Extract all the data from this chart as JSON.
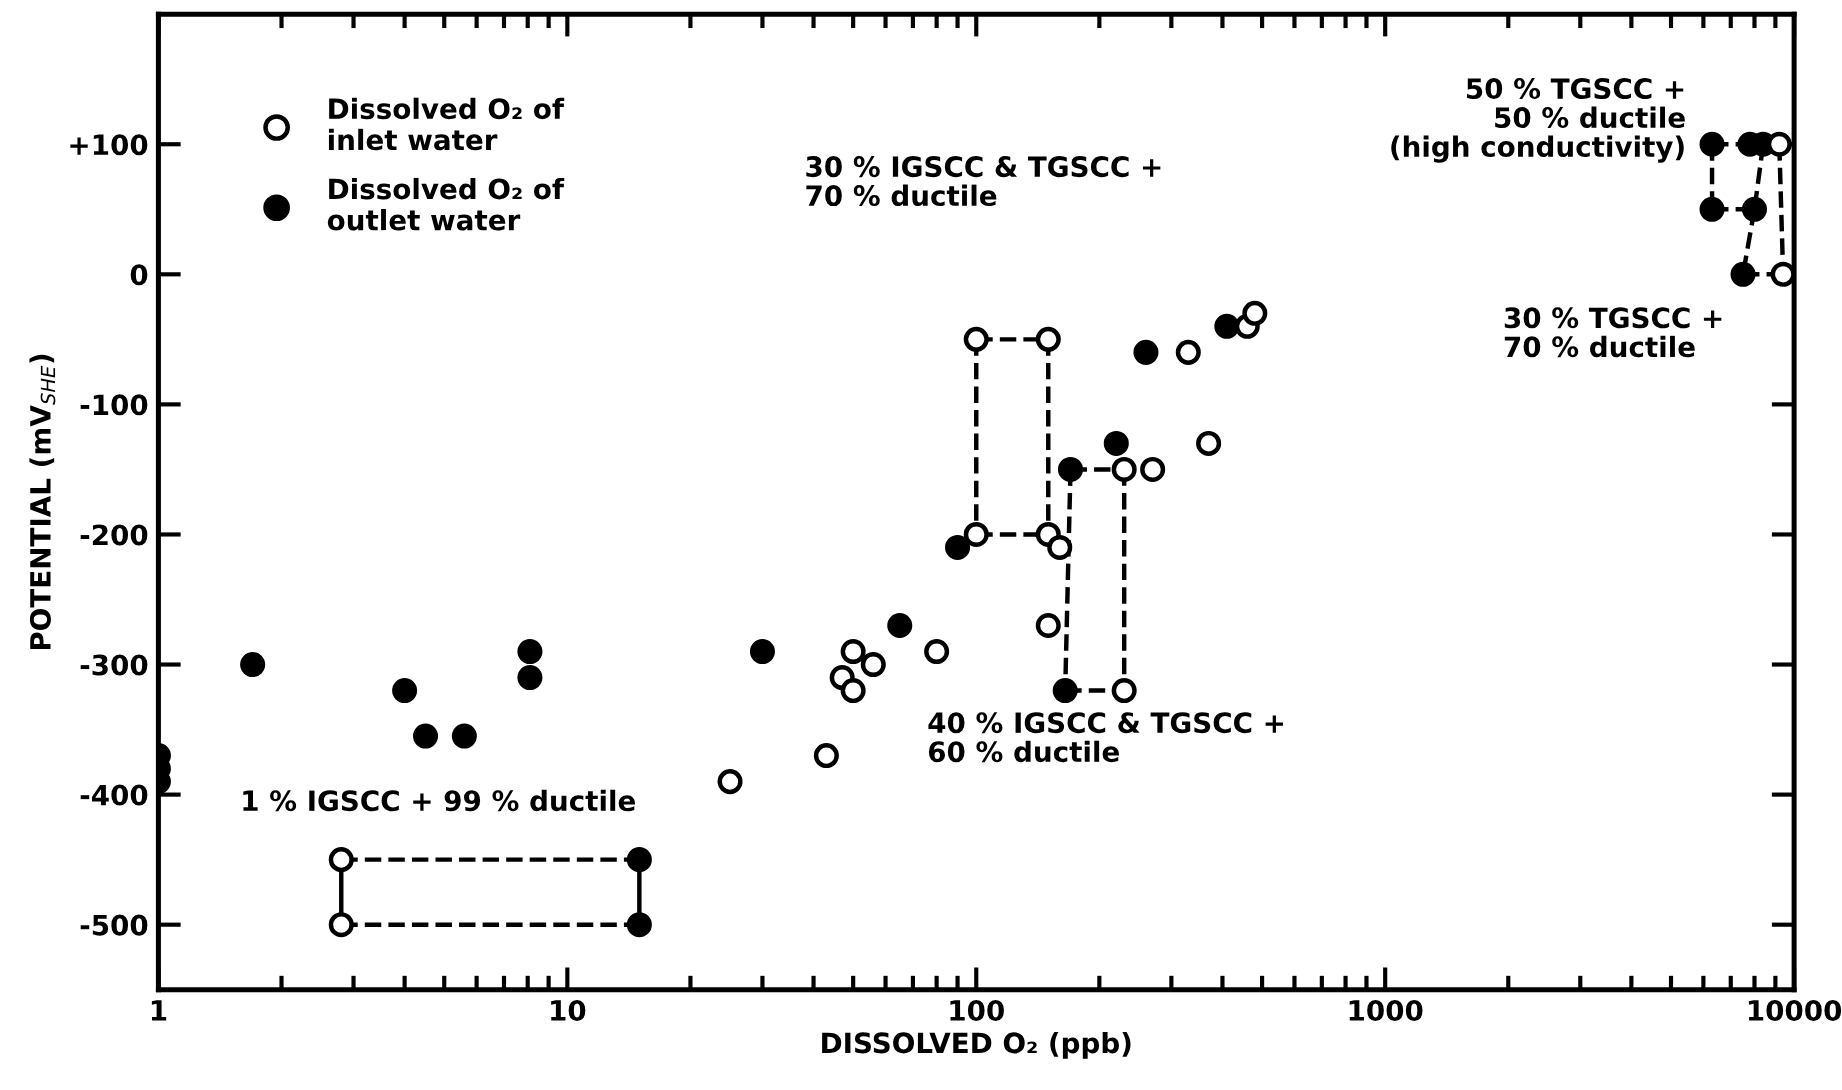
{
  "chart_data": {
    "type": "scatter",
    "xlabel": "DISSOLVED O₂ (ppb)",
    "ylabel": "POTENTIAL (mV$_{SHE}$)",
    "log": "x",
    "xlim": [
      1,
      10000
    ],
    "ylim": [
      -550,
      200
    ],
    "xticks": [
      1,
      10,
      100,
      1000,
      10000
    ],
    "yticks": [
      {
        "value": 100,
        "label": "+100"
      },
      0,
      {
        "value": -100,
        "label": "-100"
      },
      {
        "value": -200,
        "label": "-200"
      },
      {
        "value": -300,
        "label": "-300"
      },
      {
        "value": -400,
        "label": "-400"
      },
      {
        "value": -500,
        "label": "-500"
      }
    ],
    "grid": false,
    "legend": "top left",
    "series": [
      {
        "name": "Dissolved O₂ of\ninlet water",
        "color": "#ffffff",
        "marker": "circle",
        "x": [
          2.8,
          2.8,
          25,
          43,
          47,
          50,
          50,
          56,
          80,
          100,
          100,
          150,
          150,
          150,
          160,
          230,
          230,
          270,
          330,
          370,
          460,
          480,
          9200,
          9400
        ],
        "values": [
          -450,
          -500,
          -390,
          -370,
          -310,
          -290,
          -320,
          -300,
          -290,
          -50,
          -200,
          -50,
          -200,
          -270,
          -210,
          -320,
          -150,
          -150,
          -60,
          -130,
          -40,
          -30,
          100,
          0
        ]
      },
      {
        "name": "Dissolved O₂ of\noutlet water",
        "color": "#000000",
        "marker": "circle",
        "x": [
          1,
          1,
          1,
          1.7,
          4.0,
          4.5,
          5.6,
          8.1,
          8.1,
          15,
          15,
          30,
          65,
          90,
          165,
          170,
          220,
          260,
          410,
          6300,
          6300,
          7800,
          8000,
          8400,
          7500
        ],
        "values": [
          -370,
          -380,
          -390,
          -300,
          -320,
          -355,
          -355,
          -290,
          -310,
          -450,
          -500,
          -290,
          -270,
          -210,
          -320,
          -150,
          -130,
          -60,
          -40,
          100,
          50,
          100,
          50,
          100,
          0
        ]
      },
      {
        "type": "line",
        "line_style": "dashed",
        "color": "#000000",
        "x": [
          2.8,
          15
        ],
        "values": [
          -450,
          -450
        ]
      },
      {
        "type": "line",
        "line_style": "dashed",
        "color": "#000000",
        "x": [
          2.8,
          15
        ],
        "values": [
          -500,
          -500
        ]
      },
      {
        "type": "line",
        "line_style": "solid",
        "color": "#000000",
        "x": [
          2.8,
          2.8
        ],
        "values": [
          -450,
          -500
        ]
      },
      {
        "type": "line",
        "line_style": "solid",
        "color": "#000000",
        "x": [
          15,
          15
        ],
        "values": [
          -450,
          -500
        ]
      },
      {
        "type": "line",
        "line_style": "dashed",
        "color": "#000000",
        "x": [
          100,
          150
        ],
        "values": [
          -50,
          -50
        ]
      },
      {
        "type": "line",
        "line_style": "dashed",
        "color": "#000000",
        "x": [
          100,
          150
        ],
        "values": [
          -200,
          -200
        ]
      },
      {
        "type": "line",
        "line_style": "dashed",
        "color": "#000000",
        "x": [
          100,
          100
        ],
        "values": [
          -50,
          -200
        ]
      },
      {
        "type": "line",
        "line_style": "dashed",
        "color": "#000000",
        "x": [
          150,
          150
        ],
        "values": [
          -50,
          -200
        ]
      },
      {
        "type": "line",
        "line_style": "dashed",
        "color": "#000000",
        "x": [
          170,
          230
        ],
        "values": [
          -150,
          -150
        ]
      },
      {
        "type": "line",
        "line_style": "dashed",
        "color": "#000000",
        "x": [
          165,
          230
        ],
        "values": [
          -320,
          -320
        ]
      },
      {
        "type": "line",
        "line_style": "dashed",
        "color": "#000000",
        "x": [
          170,
          165
        ],
        "values": [
          -150,
          -320
        ]
      },
      {
        "type": "line",
        "line_style": "dashed",
        "color": "#000000",
        "x": [
          230,
          230
        ],
        "values": [
          -150,
          -320
        ]
      },
      {
        "type": "line",
        "line_style": "dashed",
        "color": "#000000",
        "x": [
          6300,
          8400
        ],
        "values": [
          100,
          100
        ]
      },
      {
        "type": "line",
        "line_style": "dashed",
        "color": "#000000",
        "x": [
          6300,
          8000
        ],
        "values": [
          50,
          50
        ]
      },
      {
        "type": "line",
        "line_style": "dashed",
        "color": "#000000",
        "x": [
          7500,
          9400
        ],
        "values": [
          0,
          0
        ]
      },
      {
        "type": "line",
        "line_style": "dashed",
        "color": "#000000",
        "x": [
          6300,
          6300
        ],
        "values": [
          100,
          50
        ]
      },
      {
        "type": "line",
        "line_style": "dashed",
        "color": "#000000",
        "x": [
          8400,
          8000
        ],
        "values": [
          100,
          50
        ]
      },
      {
        "type": "line",
        "line_style": "dashed",
        "color": "#000000",
        "x": [
          8000,
          7500
        ],
        "values": [
          50,
          0
        ]
      },
      {
        "type": "line",
        "line_style": "dashed",
        "color": "#000000",
        "x": [
          9200,
          9400
        ],
        "values": [
          100,
          0
        ]
      }
    ],
    "annotations": [
      "1 % IGSCC + 99 % ductile",
      "30 % IGSCC & TGSCC +\n70 % ductile",
      "40 % IGSCC & TGSCC +\n60 % ductile",
      "50 % TGSCC +\n50 % ductile\n(high conductivity)",
      "30 % TGSCC +\n70 % ductile"
    ]
  }
}
